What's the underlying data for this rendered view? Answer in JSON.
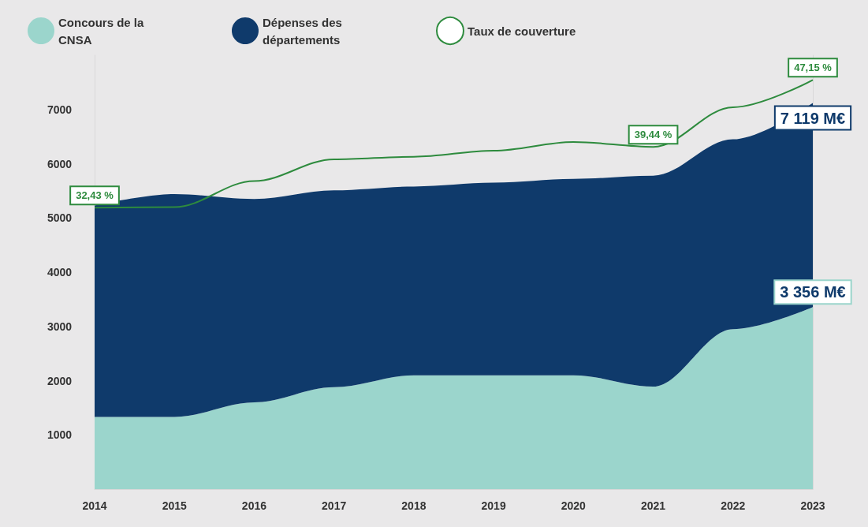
{
  "chart_data": {
    "type": "area",
    "stacked": true,
    "categories": [
      "2014",
      "2015",
      "2016",
      "2017",
      "2018",
      "2019",
      "2020",
      "2021",
      "2022",
      "2023"
    ],
    "series": [
      {
        "name": "Concours de la CNSA",
        "color": "#9bd5cc",
        "values": [
          1330,
          1330,
          1600,
          1880,
          2100,
          2100,
          2100,
          1890,
          2950,
          3356
        ],
        "value_labels": [
          null,
          null,
          null,
          null,
          null,
          null,
          null,
          null,
          null,
          "3 356 M€"
        ]
      },
      {
        "name": "Dépenses des départements",
        "color": "#0f3a6b",
        "values": [
          3900,
          4110,
          3750,
          3630,
          3480,
          3550,
          3620,
          3890,
          3500,
          3763
        ]
      },
      {
        "name": "Taux de couverture",
        "type": "line",
        "axis": "y2",
        "color": "#2e8b3e",
        "values": [
          32.43,
          32.5,
          35.5,
          38.0,
          38.3,
          39.0,
          40.0,
          39.44,
          44.0,
          47.15
        ],
        "value_labels": [
          "32,43 %",
          null,
          null,
          null,
          null,
          null,
          null,
          "39,44 %",
          null,
          "47,15 %"
        ]
      }
    ],
    "totals": [
      null,
      null,
      null,
      null,
      null,
      null,
      null,
      null,
      null,
      "7 119 M€"
    ],
    "ylim": [
      0,
      8000
    ],
    "yticks": [
      {
        "value": 1000,
        "label": "1000"
      },
      {
        "value": 2000,
        "label": "2000"
      },
      {
        "value": 3000,
        "label": "3000"
      },
      {
        "value": 4000,
        "label": "4000"
      },
      {
        "value": 5000,
        "label": "5000"
      },
      {
        "value": 6000,
        "label": "6000"
      },
      {
        "value": 7000,
        "label": "7000"
      }
    ],
    "y2lim": [
      0,
      50
    ],
    "tick_labels": "xy",
    "grid": false,
    "legend": "top left",
    "marker": "none"
  }
}
